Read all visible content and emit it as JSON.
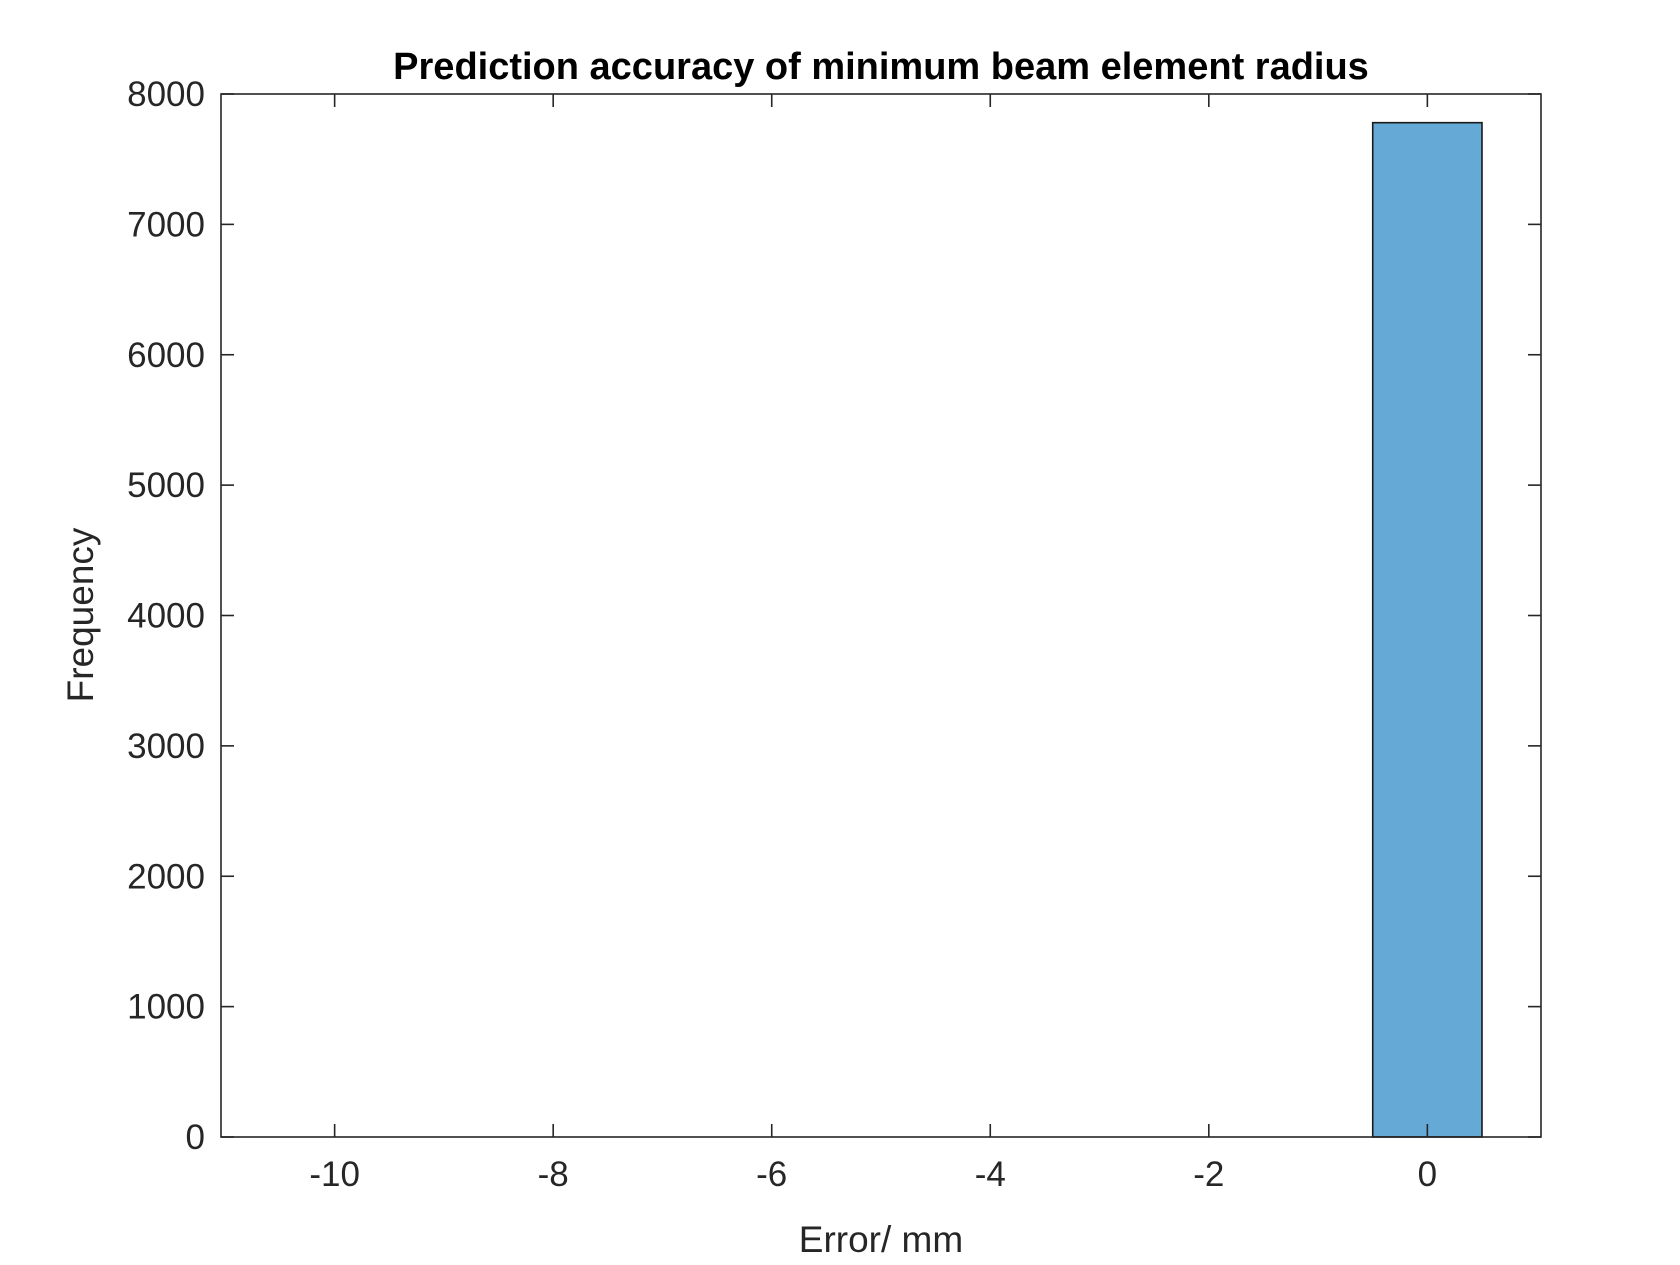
{
  "chart_data": {
    "type": "bar",
    "title": "Prediction accuracy of minimum beam element radius",
    "xlabel": "Error/ mm",
    "ylabel": "Frequency",
    "xlim": [
      -11.04,
      1.04
    ],
    "ylim": [
      0,
      8000
    ],
    "xticks": [
      -10,
      -8,
      -6,
      -4,
      -2,
      0
    ],
    "xtick_labels": [
      "-10",
      "-8",
      "-6",
      "-4",
      "-2",
      "0"
    ],
    "yticks": [
      0,
      1000,
      2000,
      3000,
      4000,
      5000,
      6000,
      7000,
      8000
    ],
    "ytick_labels": [
      "0",
      "1000",
      "2000",
      "3000",
      "4000",
      "5000",
      "6000",
      "7000",
      "8000"
    ],
    "bins": [
      {
        "x_start": -0.5,
        "x_end": 0.5,
        "value": 7780
      }
    ],
    "grid": false,
    "colors": {
      "bar_fill": "#65a9d6",
      "bar_edge": "#1a1a1a",
      "axis": "#262626"
    }
  }
}
